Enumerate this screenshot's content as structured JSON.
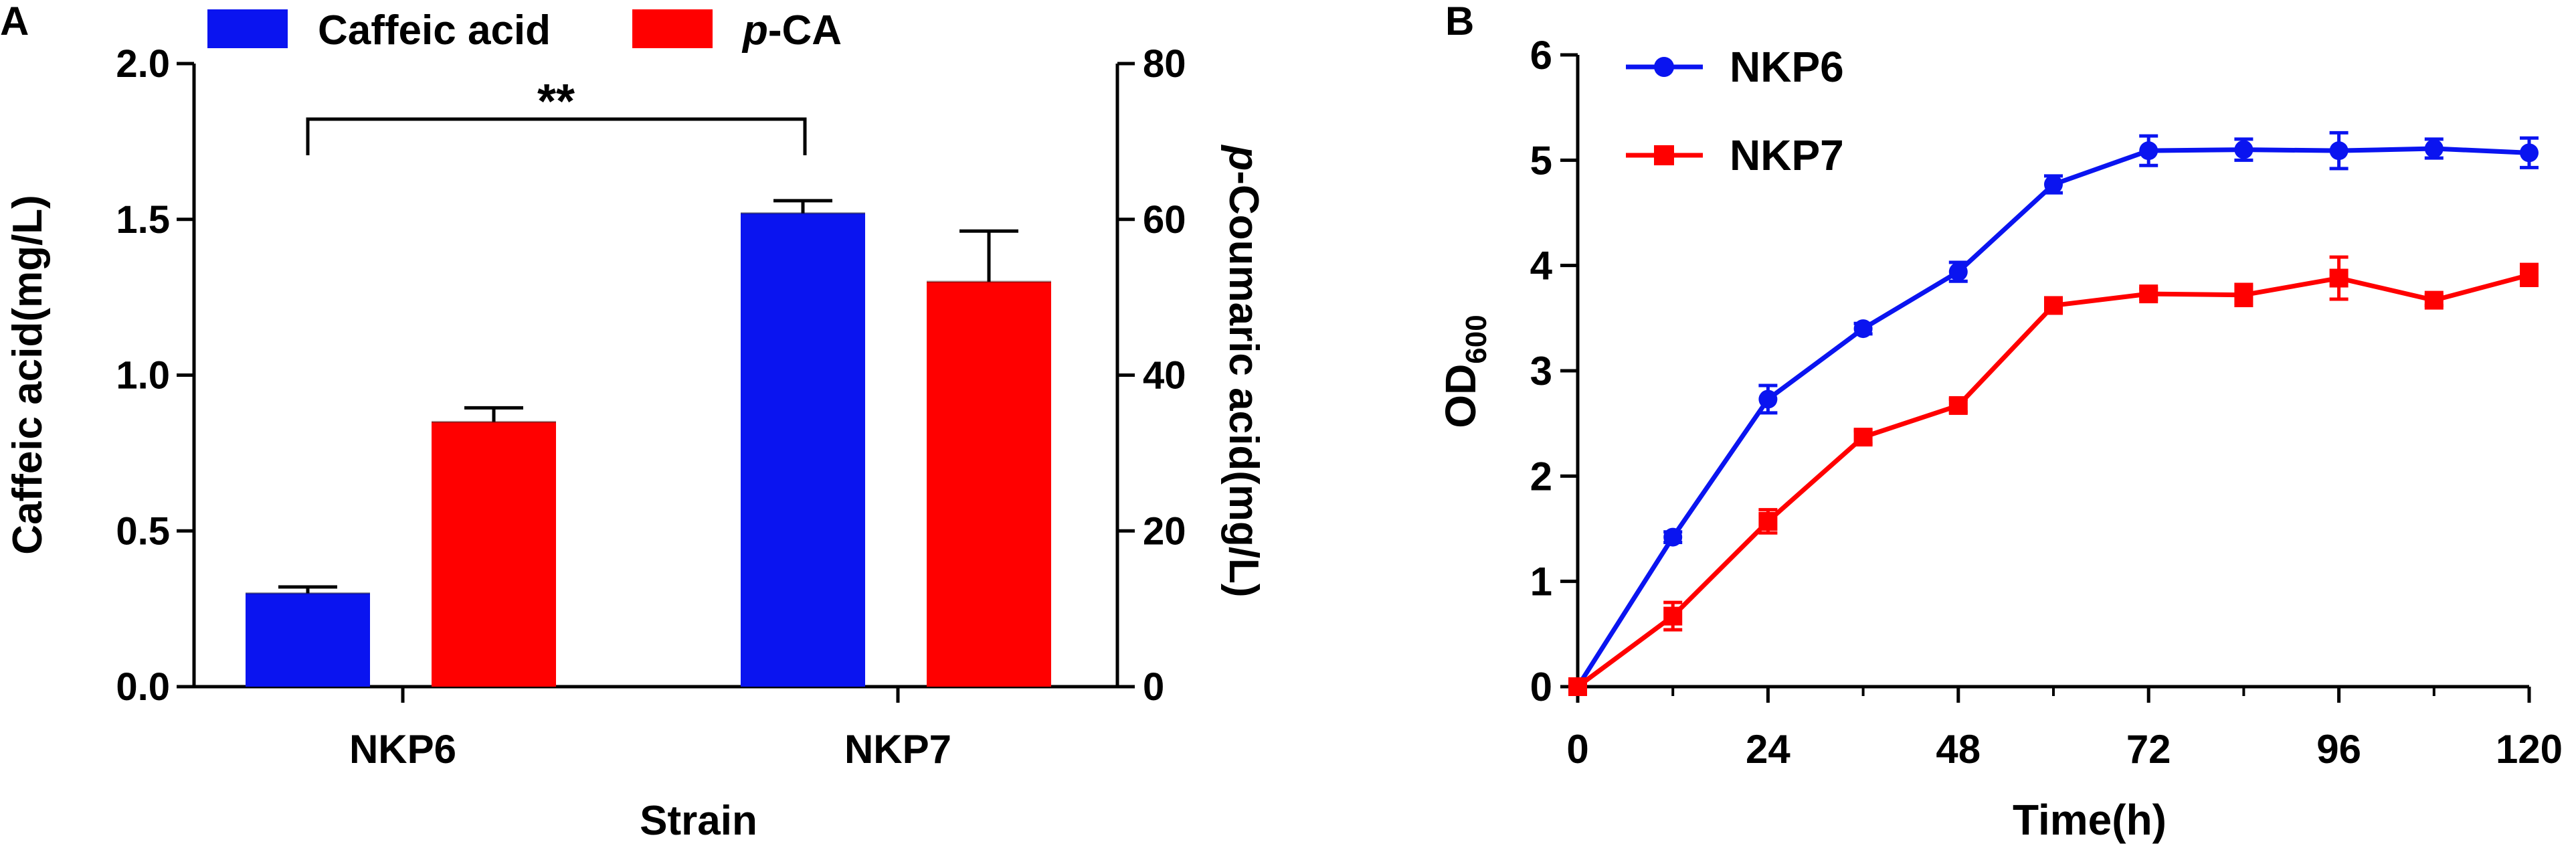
{
  "chart_data": [
    {
      "panel": "A",
      "type": "bar",
      "xlabel": "Strain",
      "ylabel": "Caffeic acid(mg/L)",
      "y2label_italic": "p",
      "y2label_rest": "-Coumaric acid(mg/L)",
      "categories": [
        "NKP6",
        "NKP7"
      ],
      "ylim": [
        0,
        2.0
      ],
      "y2lim": [
        0,
        80
      ],
      "yticks": [
        "0.0",
        "0.5",
        "1.0",
        "1.5",
        "2.0"
      ],
      "y2ticks": [
        "0",
        "20",
        "40",
        "60",
        "80"
      ],
      "legend": [
        {
          "name": "Caffeic acid",
          "italic": "",
          "color": "#0a14f0"
        },
        {
          "name": "-CA",
          "italic": "p",
          "color": "#ff0000"
        }
      ],
      "series": [
        {
          "name": "Caffeic acid",
          "axis": "left",
          "color": "#0a14f0",
          "values": [
            0.3,
            1.52
          ],
          "errors": [
            0.02,
            0.04
          ]
        },
        {
          "name": "p-CA",
          "axis": "right",
          "color": "#ff0000",
          "values": [
            34,
            52
          ],
          "errors": [
            1.8,
            6.5
          ]
        }
      ],
      "significance": "**"
    },
    {
      "panel": "B",
      "type": "line",
      "xlabel": "Time(h)",
      "ylabel": "OD",
      "ylabel_sub": "600",
      "xlim": [
        0,
        120
      ],
      "ylim": [
        0,
        6
      ],
      "xticks": [
        "0",
        "24",
        "48",
        "72",
        "96",
        "120"
      ],
      "yticks": [
        "0",
        "1",
        "2",
        "3",
        "4",
        "5",
        "6"
      ],
      "x": [
        0,
        12,
        24,
        36,
        48,
        60,
        72,
        84,
        96,
        108,
        120
      ],
      "series": [
        {
          "name": "NKP6",
          "marker": "circle",
          "color": "#0a14f0",
          "values": [
            0,
            1.42,
            2.73,
            3.4,
            3.94,
            4.77,
            5.09,
            5.1,
            5.09,
            5.11,
            5.07
          ],
          "errors": [
            0.02,
            0.05,
            0.13,
            0.05,
            0.09,
            0.08,
            0.14,
            0.1,
            0.17,
            0.09,
            0.14
          ]
        },
        {
          "name": "NKP7",
          "marker": "square",
          "color": "#ff0000",
          "values": [
            0,
            0.67,
            1.57,
            2.37,
            2.67,
            3.62,
            3.73,
            3.72,
            3.88,
            3.67,
            3.91
          ],
          "errors": [
            0.02,
            0.13,
            0.11,
            0.06,
            0.06,
            0.05,
            0.05,
            0.1,
            0.2,
            0.05,
            0.1
          ]
        }
      ]
    }
  ],
  "panel_labels": {
    "a": "A",
    "b": "B"
  }
}
